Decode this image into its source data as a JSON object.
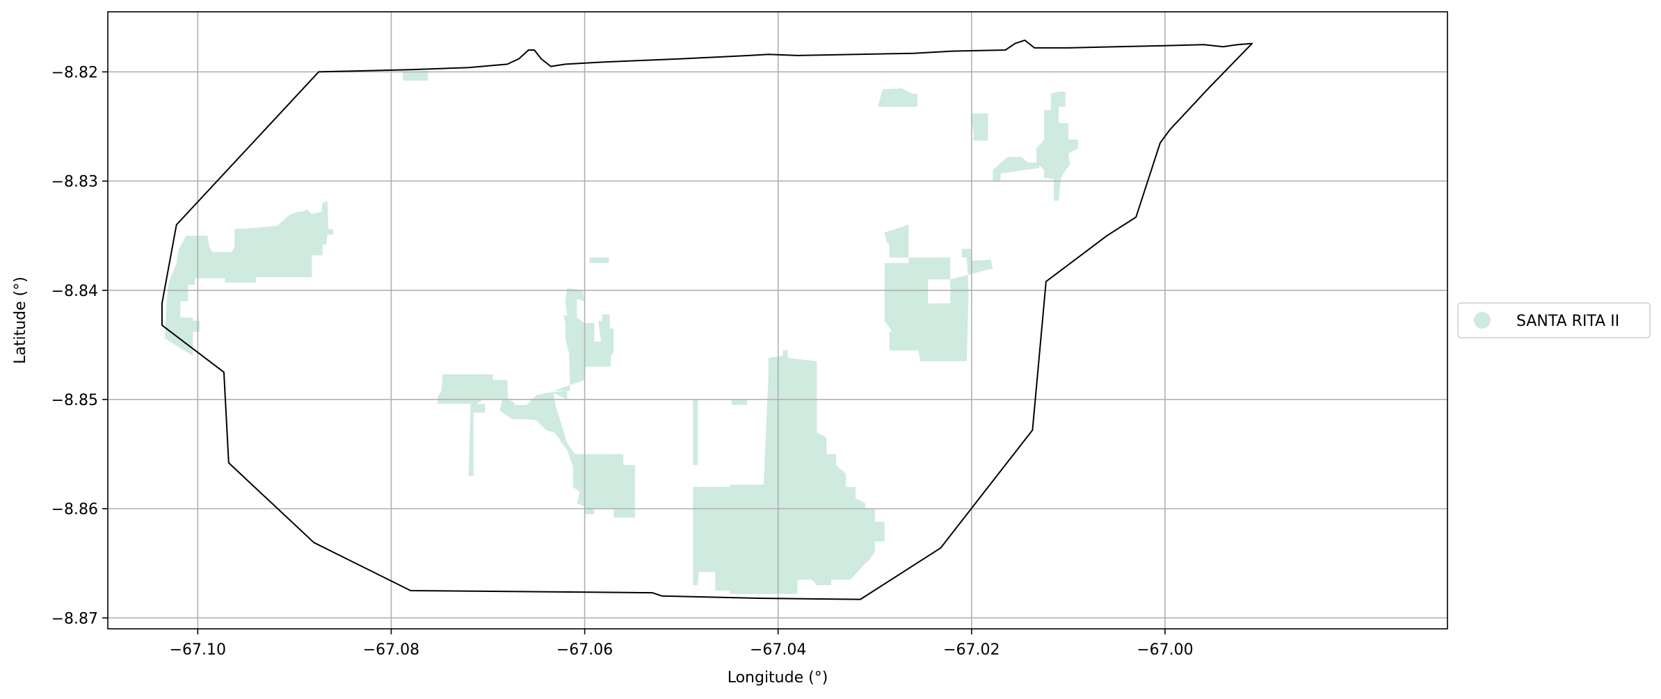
{
  "chart_data": {
    "type": "map",
    "xlabel": "Longitude (°)",
    "ylabel": "Latitude (°)",
    "xlim": [
      -67.1093,
      -66.9708
    ],
    "ylim": [
      -8.871,
      -8.8145
    ],
    "xticks": [
      -67.1,
      -67.08,
      -67.06,
      -67.04,
      -67.02,
      -67.0
    ],
    "xtick_labels": [
      "−67.10",
      "−67.08",
      "−67.06",
      "−67.04",
      "−67.02",
      "−67.00"
    ],
    "yticks": [
      -8.82,
      -8.83,
      -8.84,
      -8.85,
      -8.86,
      -8.87
    ],
    "ytick_labels": [
      "−8.82",
      "−8.83",
      "−8.84",
      "−8.85",
      "−8.86",
      "−8.87"
    ],
    "grid": true,
    "legend": {
      "position": "right",
      "entries": [
        {
          "label": "SANTA RITA II",
          "color": "#cfeadf"
        }
      ]
    },
    "boundary_color": "#000000",
    "fill_color": "#cfeadf",
    "boundary": [
      [
        -67.0875,
        -8.82
      ],
      [
        -67.078,
        -8.8198
      ],
      [
        -67.072,
        -8.8196
      ],
      [
        -67.068,
        -8.8193
      ],
      [
        -67.0668,
        -8.8188
      ],
      [
        -67.0658,
        -8.818
      ],
      [
        -67.0652,
        -8.818
      ],
      [
        -67.0645,
        -8.8188
      ],
      [
        -67.0635,
        -8.8195
      ],
      [
        -67.062,
        -8.8193
      ],
      [
        -67.058,
        -8.8191
      ],
      [
        -67.05,
        -8.8188
      ],
      [
        -67.043,
        -8.8185
      ],
      [
        -67.041,
        -8.8184
      ],
      [
        -67.038,
        -8.8185
      ],
      [
        -67.026,
        -8.8183
      ],
      [
        -67.022,
        -8.8181
      ],
      [
        -67.0165,
        -8.818
      ],
      [
        -67.0155,
        -8.8174
      ],
      [
        -67.0145,
        -8.8171
      ],
      [
        -67.0135,
        -8.8178
      ],
      [
        -67.01,
        -8.8178
      ],
      [
        -67.005,
        -8.8177
      ],
      [
        -67.0,
        -8.8176
      ],
      [
        -66.996,
        -8.8175
      ],
      [
        -66.994,
        -8.8177
      ],
      [
        -66.9925,
        -8.8175
      ],
      [
        -66.991,
        -8.8174
      ],
      [
        -66.9955,
        -8.8215
      ],
      [
        -66.9995,
        -8.8253
      ],
      [
        -67.0005,
        -8.8265
      ],
      [
        -67.003,
        -8.8333
      ],
      [
        -67.006,
        -8.835
      ],
      [
        -67.0123,
        -8.8392
      ],
      [
        -67.0137,
        -8.8528
      ],
      [
        -67.0232,
        -8.8636
      ],
      [
        -67.0315,
        -8.8683
      ],
      [
        -67.042,
        -8.8682
      ],
      [
        -67.052,
        -8.868
      ],
      [
        -67.053,
        -8.8677
      ],
      [
        -67.078,
        -8.8675
      ],
      [
        -67.088,
        -8.8631
      ],
      [
        -67.0968,
        -8.8558
      ],
      [
        -67.0973,
        -8.8475
      ],
      [
        -67.1037,
        -8.8432
      ],
      [
        -67.1037,
        -8.8412
      ],
      [
        -67.1022,
        -8.834
      ],
      [
        -67.0875,
        -8.82
      ]
    ],
    "parcels": [
      [
        [
          -67.102,
          -8.8363
        ],
        [
          -67.1012,
          -8.835
        ],
        [
          -67.099,
          -8.835
        ],
        [
          -67.0988,
          -8.836
        ],
        [
          -67.0985,
          -8.8365
        ],
        [
          -67.0965,
          -8.8365
        ],
        [
          -67.0962,
          -8.836
        ],
        [
          -67.0962,
          -8.8344
        ],
        [
          -67.0943,
          -8.8343
        ],
        [
          -67.0918,
          -8.8341
        ],
        [
          -67.0905,
          -8.8331
        ],
        [
          -67.0897,
          -8.8328
        ],
        [
          -67.0892,
          -8.8328
        ],
        [
          -67.0887,
          -8.8326
        ],
        [
          -67.0882,
          -8.833
        ],
        [
          -67.0872,
          -8.8328
        ],
        [
          -67.0871,
          -8.832
        ],
        [
          -67.0866,
          -8.8318
        ],
        [
          -67.0865,
          -8.8344
        ],
        [
          -67.086,
          -8.8344
        ],
        [
          -67.086,
          -8.8349
        ],
        [
          -67.0866,
          -8.8349
        ],
        [
          -67.0867,
          -8.8358
        ],
        [
          -67.0871,
          -8.8358
        ],
        [
          -67.0871,
          -8.8368
        ],
        [
          -67.0882,
          -8.8368
        ],
        [
          -67.0882,
          -8.8388
        ],
        [
          -67.094,
          -8.8388
        ],
        [
          -67.094,
          -8.8393
        ],
        [
          -67.0972,
          -8.8393
        ],
        [
          -67.0972,
          -8.8389
        ],
        [
          -67.1003,
          -8.8389
        ],
        [
          -67.1003,
          -8.8395
        ],
        [
          -67.101,
          -8.8395
        ],
        [
          -67.101,
          -8.841
        ],
        [
          -67.1018,
          -8.841
        ],
        [
          -67.1018,
          -8.8425
        ],
        [
          -67.1005,
          -8.8425
        ],
        [
          -67.1005,
          -8.8428
        ],
        [
          -67.0998,
          -8.8428
        ],
        [
          -67.0998,
          -8.8438
        ],
        [
          -67.1005,
          -8.8438
        ],
        [
          -67.1005,
          -8.846
        ],
        [
          -67.1034,
          -8.8444
        ],
        [
          -67.1032,
          -8.841
        ],
        [
          -67.103,
          -8.8393
        ],
        [
          -67.1022,
          -8.8375
        ]
      ],
      [
        [
          -67.0788,
          -8.82
        ],
        [
          -67.0788,
          -8.8208
        ],
        [
          -67.0762,
          -8.8208
        ],
        [
          -67.0762,
          -8.8199
        ]
      ],
      [
        [
          -67.0747,
          -8.8477
        ],
        [
          -67.0695,
          -8.8477
        ],
        [
          -67.0695,
          -8.8482
        ],
        [
          -67.068,
          -8.8482
        ],
        [
          -67.0679,
          -8.85
        ],
        [
          -67.0674,
          -8.8502
        ],
        [
          -67.0672,
          -8.8505
        ],
        [
          -67.066,
          -8.8505
        ],
        [
          -67.065,
          -8.8496
        ],
        [
          -67.064,
          -8.8494
        ],
        [
          -67.063,
          -8.8493
        ],
        [
          -67.0618,
          -8.8492
        ],
        [
          -67.0618,
          -8.85
        ],
        [
          -67.0632,
          -8.8494
        ],
        [
          -67.063,
          -8.8506
        ],
        [
          -67.0625,
          -8.852
        ],
        [
          -67.0618,
          -8.854
        ],
        [
          -67.061,
          -8.855
        ],
        [
          -67.056,
          -8.855
        ],
        [
          -67.056,
          -8.856
        ],
        [
          -67.0548,
          -8.856
        ],
        [
          -67.0548,
          -8.8608
        ],
        [
          -67.057,
          -8.8608
        ],
        [
          -67.057,
          -8.86
        ],
        [
          -67.059,
          -8.86
        ],
        [
          -67.059,
          -8.8605
        ],
        [
          -67.06,
          -8.8605
        ],
        [
          -67.06,
          -8.8598
        ],
        [
          -67.0608,
          -8.8595
        ],
        [
          -67.0605,
          -8.8585
        ],
        [
          -67.0612,
          -8.858
        ],
        [
          -67.0612,
          -8.8562
        ],
        [
          -67.0618,
          -8.8546
        ],
        [
          -67.0624,
          -8.854
        ],
        [
          -67.0626,
          -8.8536
        ],
        [
          -67.0632,
          -8.853
        ],
        [
          -67.064,
          -8.8528
        ],
        [
          -67.065,
          -8.8519
        ],
        [
          -67.066,
          -8.8518
        ],
        [
          -67.0675,
          -8.8518
        ],
        [
          -67.068,
          -8.8515
        ],
        [
          -67.0688,
          -8.851
        ],
        [
          -67.0685,
          -8.85
        ],
        [
          -67.0697,
          -8.85
        ],
        [
          -67.0705,
          -8.85
        ],
        [
          -67.0712,
          -8.8504
        ],
        [
          -67.0718,
          -8.8504
        ],
        [
          -67.072,
          -8.857
        ],
        [
          -67.0715,
          -8.857
        ],
        [
          -67.0715,
          -8.8512
        ],
        [
          -67.0703,
          -8.8512
        ],
        [
          -67.0703,
          -8.8504
        ],
        [
          -67.0752,
          -8.8504
        ],
        [
          -67.0752,
          -8.8498
        ],
        [
          -67.0748,
          -8.8492
        ]
      ],
      [
        [
          -67.0632,
          -8.8492
        ],
        [
          -67.0615,
          -8.8492
        ],
        [
          -67.0616,
          -8.8458
        ],
        [
          -67.062,
          -8.8445
        ],
        [
          -67.062,
          -8.843
        ],
        [
          -67.0622,
          -8.8423
        ],
        [
          -67.0618,
          -8.8423
        ],
        [
          -67.062,
          -8.841
        ],
        [
          -67.0618,
          -8.8398
        ],
        [
          -67.0602,
          -8.84
        ],
        [
          -67.06,
          -8.841
        ],
        [
          -67.0608,
          -8.8408
        ],
        [
          -67.0608,
          -8.8425
        ],
        [
          -67.06,
          -8.843
        ],
        [
          -67.059,
          -8.843
        ],
        [
          -67.059,
          -8.8447
        ],
        [
          -67.0583,
          -8.8447
        ],
        [
          -67.0586,
          -8.8428
        ],
        [
          -67.0582,
          -8.8428
        ],
        [
          -67.0582,
          -8.8422
        ],
        [
          -67.0574,
          -8.8422
        ],
        [
          -67.0574,
          -8.8435
        ],
        [
          -67.057,
          -8.8435
        ],
        [
          -67.057,
          -8.8457
        ],
        [
          -67.0573,
          -8.846
        ],
        [
          -67.0573,
          -8.847
        ],
        [
          -67.06,
          -8.847
        ],
        [
          -67.06,
          -8.8482
        ]
      ],
      [
        [
          -67.0595,
          -8.837
        ],
        [
          -67.0575,
          -8.837
        ],
        [
          -67.0575,
          -8.8375
        ],
        [
          -67.0595,
          -8.8375
        ]
      ],
      [
        [
          -67.0488,
          -8.85
        ],
        [
          -67.0483,
          -8.85
        ],
        [
          -67.0483,
          -8.856
        ],
        [
          -67.0488,
          -8.856
        ]
      ],
      [
        [
          -67.0448,
          -8.85
        ],
        [
          -67.0432,
          -8.85
        ],
        [
          -67.0432,
          -8.8505
        ],
        [
          -67.0448,
          -8.8505
        ]
      ],
      [
        [
          -67.0488,
          -8.858
        ],
        [
          -67.0488,
          -8.867
        ],
        [
          -67.0483,
          -8.867
        ],
        [
          -67.0482,
          -8.8658
        ],
        [
          -67.0465,
          -8.8658
        ],
        [
          -67.0465,
          -8.8675
        ],
        [
          -67.045,
          -8.8675
        ],
        [
          -67.045,
          -8.8678
        ],
        [
          -67.038,
          -8.8678
        ],
        [
          -67.038,
          -8.8665
        ],
        [
          -67.0365,
          -8.8665
        ],
        [
          -67.036,
          -8.867
        ],
        [
          -67.0345,
          -8.867
        ],
        [
          -67.0345,
          -8.8665
        ],
        [
          -67.0325,
          -8.8665
        ],
        [
          -67.032,
          -8.866
        ],
        [
          -67.0315,
          -8.8655
        ],
        [
          -67.031,
          -8.865
        ],
        [
          -67.0307,
          -8.8648
        ],
        [
          -67.03,
          -8.864
        ],
        [
          -67.03,
          -8.863
        ],
        [
          -67.029,
          -8.863
        ],
        [
          -67.029,
          -8.8618
        ],
        [
          -67.029,
          -8.8612
        ],
        [
          -67.03,
          -8.8612
        ],
        [
          -67.03,
          -8.86
        ],
        [
          -67.031,
          -8.86
        ],
        [
          -67.031,
          -8.8595
        ],
        [
          -67.032,
          -8.859
        ],
        [
          -67.032,
          -8.858
        ],
        [
          -67.033,
          -8.858
        ],
        [
          -67.033,
          -8.8568
        ],
        [
          -67.034,
          -8.856
        ],
        [
          -67.034,
          -8.855
        ],
        [
          -67.035,
          -8.855
        ],
        [
          -67.035,
          -8.8535
        ],
        [
          -67.036,
          -8.853
        ],
        [
          -67.036,
          -8.8465
        ],
        [
          -67.039,
          -8.8462
        ],
        [
          -67.039,
          -8.8455
        ],
        [
          -67.0395,
          -8.8455
        ],
        [
          -67.0395,
          -8.846
        ],
        [
          -67.041,
          -8.8462
        ],
        [
          -67.041,
          -8.8478
        ],
        [
          -67.0415,
          -8.8578
        ],
        [
          -67.045,
          -8.8578
        ],
        [
          -67.045,
          -8.858
        ]
      ],
      [
        [
          -67.0265,
          -8.834
        ],
        [
          -67.0265,
          -8.8375
        ],
        [
          -67.029,
          -8.8375
        ],
        [
          -67.029,
          -8.8428
        ],
        [
          -67.0282,
          -8.8438
        ],
        [
          -67.0285,
          -8.8438
        ],
        [
          -67.0285,
          -8.8443
        ],
        [
          -67.0285,
          -8.8455
        ],
        [
          -67.0255,
          -8.8455
        ],
        [
          -67.0253,
          -8.8465
        ],
        [
          -67.0205,
          -8.8465
        ],
        [
          -67.0203,
          -8.84
        ],
        [
          -67.0205,
          -8.837
        ],
        [
          -67.021,
          -8.837
        ],
        [
          -67.021,
          -8.8362
        ],
        [
          -67.02,
          -8.8362
        ],
        [
          -67.02,
          -8.8373
        ],
        [
          -67.018,
          -8.8372
        ],
        [
          -67.0178,
          -8.838
        ],
        [
          -67.0222,
          -8.839
        ],
        [
          -67.0222,
          -8.8412
        ],
        [
          -67.0245,
          -8.8412
        ],
        [
          -67.0245,
          -8.839
        ],
        [
          -67.0222,
          -8.839
        ],
        [
          -67.0222,
          -8.837
        ],
        [
          -67.0285,
          -8.837
        ],
        [
          -67.0285,
          -8.8357
        ],
        [
          -67.0287,
          -8.8357
        ],
        [
          -67.029,
          -8.8347
        ]
      ],
      [
        [
          -67.0297,
          -8.8232
        ],
        [
          -67.0292,
          -8.8216
        ],
        [
          -67.0272,
          -8.8215
        ],
        [
          -67.0262,
          -8.822
        ],
        [
          -67.0256,
          -8.822
        ],
        [
          -67.0256,
          -8.8232
        ]
      ],
      [
        [
          -67.02,
          -8.8238
        ],
        [
          -67.0183,
          -8.8238
        ],
        [
          -67.0183,
          -8.8263
        ],
        [
          -67.0198,
          -8.8263
        ],
        [
          -67.0198,
          -8.8255
        ],
        [
          -67.02,
          -8.8245
        ]
      ],
      [
        [
          -67.0163,
          -8.8278
        ],
        [
          -67.0148,
          -8.8278
        ],
        [
          -67.0142,
          -8.8283
        ],
        [
          -67.013,
          -8.8283
        ],
        [
          -67.013,
          -8.8288
        ],
        [
          -67.0162,
          -8.8292
        ],
        [
          -67.017,
          -8.8293
        ],
        [
          -67.017,
          -8.83
        ],
        [
          -67.0178,
          -8.83
        ],
        [
          -67.0178,
          -8.829
        ]
      ],
      [
        [
          -67.011,
          -8.8218
        ],
        [
          -67.0118,
          -8.822
        ],
        [
          -67.0118,
          -8.8235
        ],
        [
          -67.0125,
          -8.8235
        ],
        [
          -67.0125,
          -8.8255
        ],
        [
          -67.0125,
          -8.8262
        ],
        [
          -67.0133,
          -8.827
        ],
        [
          -67.0133,
          -8.8283
        ],
        [
          -67.0125,
          -8.829
        ],
        [
          -67.0125,
          -8.8297
        ],
        [
          -67.0115,
          -8.8298
        ],
        [
          -67.0115,
          -8.8318
        ],
        [
          -67.011,
          -8.8318
        ],
        [
          -67.0108,
          -8.8298
        ],
        [
          -67.0103,
          -8.829
        ],
        [
          -67.0098,
          -8.8285
        ],
        [
          -67.01,
          -8.8275
        ],
        [
          -67.009,
          -8.827
        ],
        [
          -67.009,
          -8.8262
        ],
        [
          -67.01,
          -8.8262
        ],
        [
          -67.01,
          -8.8247
        ],
        [
          -67.011,
          -8.8247
        ],
        [
          -67.011,
          -8.8232
        ],
        [
          -67.0103,
          -8.8232
        ],
        [
          -67.0103,
          -8.8218
        ]
      ]
    ]
  }
}
